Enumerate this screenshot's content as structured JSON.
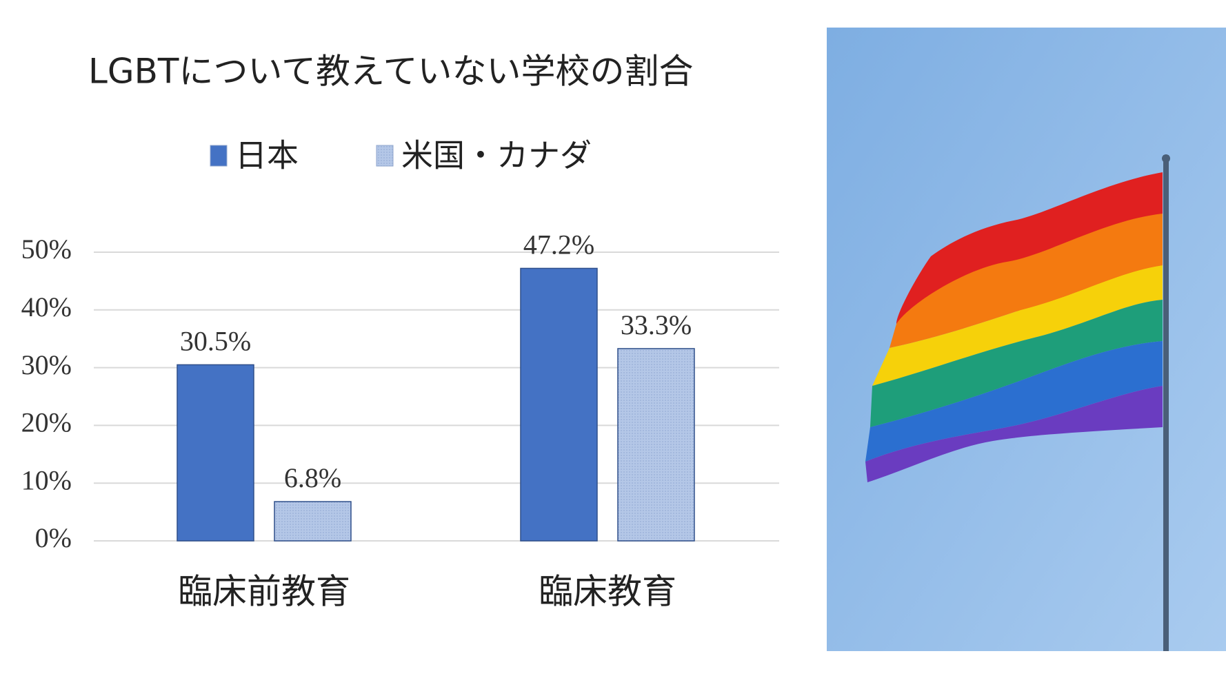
{
  "chart_data": {
    "type": "bar",
    "title": "LGBTについて教えていない学校の割合",
    "categories": [
      "臨床前教育",
      "臨床教育"
    ],
    "series": [
      {
        "name": "日本",
        "color": "#4472c4",
        "values": [
          30.5,
          47.2
        ],
        "value_labels": [
          "30.5%",
          "47.2%"
        ]
      },
      {
        "name": "米国・カナダ",
        "color": "#b4c7e7",
        "values": [
          6.8,
          33.3
        ],
        "value_labels": [
          "6.8%",
          "33.3%"
        ]
      }
    ],
    "ylim": [
      0,
      50
    ],
    "yticks": [
      {
        "value": 0,
        "label": "0%"
      },
      {
        "value": 10,
        "label": "10%"
      },
      {
        "value": 20,
        "label": "20%"
      },
      {
        "value": 30,
        "label": "30%"
      },
      {
        "value": 40,
        "label": "40%"
      },
      {
        "value": 50,
        "label": "50%"
      }
    ],
    "grid": true,
    "legend": "top"
  }
}
